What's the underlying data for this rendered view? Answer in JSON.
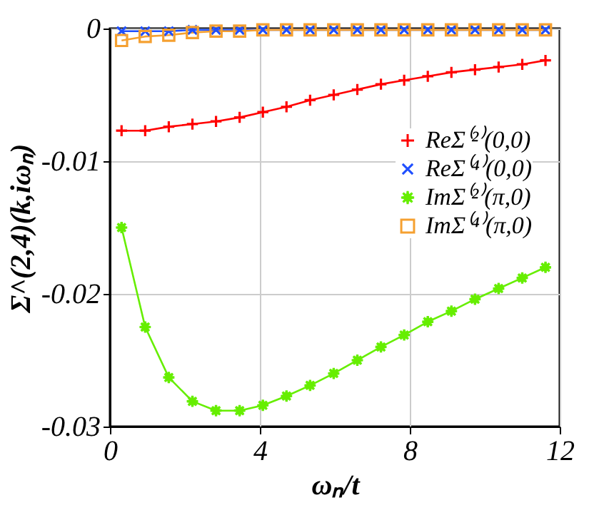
{
  "chart_data": {
    "type": "line",
    "xlabel": "ωₙ/t",
    "ylabel": "Σ^(2,4)(k,iωₙ)",
    "x": [
      0.31,
      0.94,
      1.57,
      2.2,
      2.83,
      3.46,
      4.08,
      4.71,
      5.34,
      5.97,
      6.6,
      7.23,
      7.85,
      8.48,
      9.11,
      9.74,
      10.37,
      11.0,
      11.62
    ],
    "series": [
      {
        "name": "ReΣ⁽²⁾(0,0)",
        "color": "#ff0000",
        "marker": "cross",
        "values": [
          -0.0077,
          -0.0077,
          -0.0074,
          -0.0072,
          -0.007,
          -0.0067,
          -0.0063,
          -0.0059,
          -0.0054,
          -0.005,
          -0.0046,
          -0.0042,
          -0.0039,
          -0.0036,
          -0.0033,
          -0.0031,
          -0.0029,
          -0.0027,
          -0.0024
        ]
      },
      {
        "name": "ReΣ⁽⁴⁾(0,0)",
        "color": "#1f4fff",
        "marker": "x",
        "values": [
          -0.0002,
          -0.0002,
          -0.0002,
          -0.0001,
          -0.0001,
          -0.0001,
          -0.0001,
          -0.0001,
          -0.0001,
          -0.0001,
          -0.0001,
          -0.0001,
          -0.0001,
          -0.0001,
          -0.0001,
          -0.0001,
          -0.0001,
          -0.0001,
          -0.0001
        ]
      },
      {
        "name": "ImΣ⁽²⁾(π,0)",
        "color": "#66ee00",
        "marker": "star",
        "values": [
          -0.015,
          -0.0225,
          -0.0263,
          -0.0281,
          -0.0288,
          -0.0288,
          -0.0284,
          -0.0277,
          -0.0269,
          -0.026,
          -0.025,
          -0.024,
          -0.0231,
          -0.0221,
          -0.0213,
          -0.0204,
          -0.0196,
          -0.0188,
          -0.018
        ]
      },
      {
        "name": "ImΣ⁽⁴⁾(π,0)",
        "color": "#f5a030",
        "marker": "square",
        "values": [
          -0.0009,
          -0.0006,
          -0.0005,
          -0.0003,
          -0.0002,
          -0.0002,
          -0.0001,
          -0.0001,
          -0.0001,
          -0.0001,
          -0.0001,
          -0.0001,
          -0.0001,
          -0.0001,
          -0.0001,
          -0.0001,
          -0.0001,
          -0.0001,
          -0.0001
        ]
      }
    ],
    "xlim": [
      0,
      12
    ],
    "xticks": [
      0,
      4,
      8,
      12
    ],
    "ylim": [
      -0.03,
      0
    ],
    "yticks": [
      -0.03,
      -0.02,
      -0.01,
      0
    ],
    "grid": true,
    "legend": "right",
    "line_style": "solid"
  }
}
